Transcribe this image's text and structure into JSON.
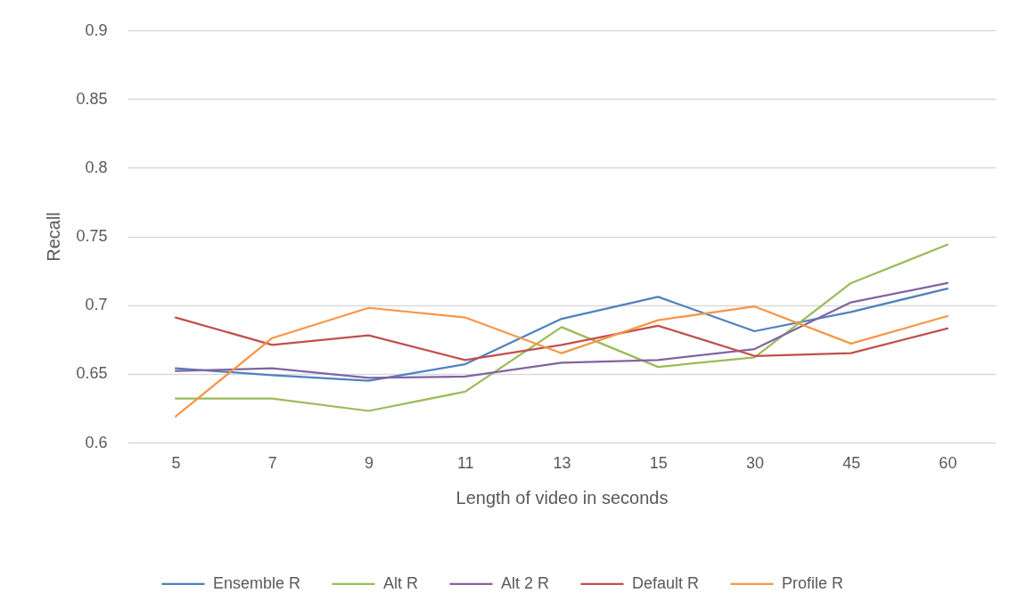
{
  "chart_data": {
    "type": "line",
    "xlabel": "Length of video in seconds",
    "ylabel": "Recall",
    "categories": [
      "5",
      "7",
      "9",
      "11",
      "13",
      "15",
      "30",
      "45",
      "60"
    ],
    "ylim": [
      0.6,
      0.9
    ],
    "yticks": [
      0.6,
      0.65,
      0.7,
      0.75,
      0.8,
      0.85,
      0.9
    ],
    "grid": "y",
    "legend": "bottom",
    "line_style": "solid",
    "series": [
      {
        "name": "Ensemble R",
        "color": "#4f81bd",
        "values": [
          0.654,
          0.649,
          0.645,
          0.657,
          0.69,
          0.706,
          0.681,
          0.695,
          0.712
        ]
      },
      {
        "name": "Alt R",
        "color": "#9bbb59",
        "values": [
          0.632,
          0.632,
          0.623,
          0.637,
          0.684,
          0.655,
          0.662,
          0.716,
          0.744
        ]
      },
      {
        "name": "Alt 2 R",
        "color": "#8064a2",
        "values": [
          0.652,
          0.654,
          0.647,
          0.648,
          0.658,
          0.66,
          0.668,
          0.702,
          0.716
        ]
      },
      {
        "name": "Default R",
        "color": "#c0504d",
        "values": [
          0.691,
          0.671,
          0.678,
          0.66,
          0.671,
          0.685,
          0.663,
          0.665,
          0.683
        ]
      },
      {
        "name": "Profile R",
        "color": "#f79646",
        "values": [
          0.619,
          0.676,
          0.698,
          0.691,
          0.665,
          0.689,
          0.699,
          0.672,
          0.692
        ]
      }
    ]
  }
}
